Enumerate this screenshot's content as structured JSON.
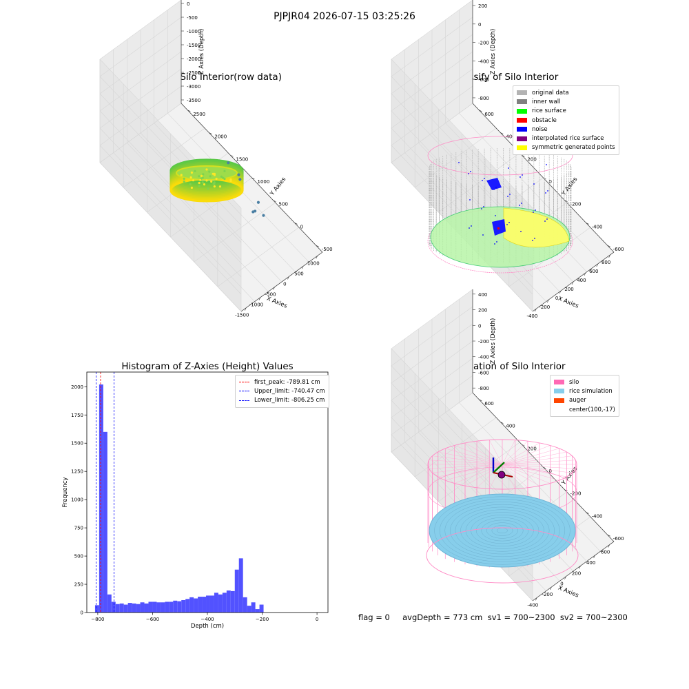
{
  "suptitle": "PJPJR04 2026-07-15 03:25:26",
  "status_line": "flag = 0     avgDepth = 773 cm  sv1 = 700~2300  sv2 = 700~2300",
  "chart_data": [
    {
      "type": "scatter",
      "projection": "3d",
      "title": "3D Plot of Silo Interior(row data)",
      "xlabel": "X Axies",
      "ylabel": "Y Axies",
      "zlabel": "Z Axies (Depth)",
      "x_ticks": [
        "-1500",
        "-1000",
        "-500",
        "0",
        "500",
        "1000"
      ],
      "y_ticks": [
        "-500",
        "0",
        "500",
        "1000",
        "1500",
        "2000",
        "2500"
      ],
      "z_ticks": [
        "0",
        "-500",
        "-1000",
        "-1500",
        "-2000",
        "-2500",
        "-3000",
        "-3500"
      ],
      "colormap": "viridis",
      "outlier_points": [
        {
          "x": 100,
          "y": -100,
          "z": -2600
        },
        {
          "x": 150,
          "y": 200,
          "z": -2950
        },
        {
          "x": 300,
          "y": 250,
          "z": -3100
        },
        {
          "x": 700,
          "y": 900,
          "z": -3200
        },
        {
          "x": 850,
          "y": 1300,
          "z": -3300
        },
        {
          "x": 950,
          "y": 1100,
          "z": -3500
        },
        {
          "x": 800,
          "y": 500,
          "z": -3500
        }
      ]
    },
    {
      "type": "scatter",
      "projection": "3d",
      "title": "3D classify of Silo Interior",
      "xlabel": "X Axies",
      "ylabel": "Y Axies",
      "zlabel": "Z Axies (Depth)",
      "x_ticks": [
        "-400",
        "-200",
        "0",
        "200",
        "400",
        "600",
        "800"
      ],
      "y_ticks": [
        "-600",
        "-400",
        "-200",
        "0",
        "200",
        "400",
        "600"
      ],
      "z_ticks": [
        "200",
        "0",
        "-200",
        "-400",
        "-600",
        "-800"
      ],
      "legend": {
        "position": "upper right",
        "entries": [
          {
            "label": "original data",
            "color": "#b3b3b3"
          },
          {
            "label": "inner wall",
            "color": "#808080"
          },
          {
            "label": "rice surface",
            "color": "#00ff00"
          },
          {
            "label": "obstacle",
            "color": "#ff0000"
          },
          {
            "label": "noise",
            "color": "#0000ff"
          },
          {
            "label": "interpolated rice surface",
            "color": "#800080"
          },
          {
            "label": "symmetric generated points",
            "color": "#ffff00"
          }
        ]
      }
    },
    {
      "type": "bar",
      "title": "Histogram of Z-Axies (Height) Values",
      "xlabel": "Depth (cm)",
      "ylabel": "Frequency",
      "xlim": [
        -840,
        40
      ],
      "ylim": [
        0,
        2130
      ],
      "x_ticks": [
        -800,
        -600,
        -400,
        -200,
        0
      ],
      "y_ticks": [
        0,
        250,
        500,
        750,
        1000,
        1250,
        1500,
        1750,
        2000
      ],
      "bar_color": "#5252ff",
      "bin_start": -810,
      "bin_width": 15,
      "values": [
        65,
        2020,
        1600,
        160,
        95,
        75,
        80,
        70,
        85,
        80,
        75,
        90,
        80,
        95,
        95,
        90,
        90,
        95,
        95,
        105,
        100,
        110,
        120,
        135,
        125,
        140,
        140,
        150,
        150,
        175,
        160,
        175,
        195,
        190,
        380,
        480,
        135,
        60,
        90,
        30,
        70
      ],
      "reference_lines": [
        {
          "label": "first_peak: -789.81 cm",
          "x": -789.81,
          "color": "#ff0000"
        },
        {
          "label": "Upper_limit: -740.47 cm",
          "x": -740.47,
          "color": "#0000ff"
        },
        {
          "label": "Lower_limit: -806.25 cm",
          "x": -806.25,
          "color": "#0000ff"
        }
      ],
      "legend": {
        "position": "upper right"
      }
    },
    {
      "type": "surface",
      "projection": "3d",
      "title": "3D simulation of Silo Interior",
      "xlabel": "X Axies",
      "ylabel": "Y Axies",
      "zlabel": "Z Axies (Depth)",
      "x_ticks": [
        "-400",
        "-200",
        "0",
        "200",
        "400",
        "600"
      ],
      "y_ticks": [
        "-600",
        "-400",
        "-200",
        "0",
        "200",
        "400",
        "600"
      ],
      "z_ticks": [
        "400",
        "200",
        "0",
        "-200",
        "-400",
        "-600",
        "-800"
      ],
      "legend": {
        "position": "upper right",
        "entries": [
          {
            "label": "silo",
            "color": "#ff69b4"
          },
          {
            "label": "rice simulation",
            "color": "#87ceeb"
          },
          {
            "label": "auger",
            "color": "#ff4500"
          },
          {
            "label": "center(100,-17)",
            "color": ""
          }
        ]
      }
    }
  ]
}
